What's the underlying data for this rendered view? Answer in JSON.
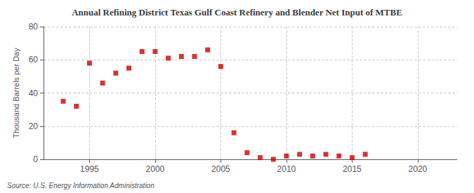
{
  "chart_data": {
    "type": "scatter",
    "title": "Annual Refining District Texas Gulf Coast Refinery and Blender Net Input of MTBE",
    "ylabel": "Thousand Barrels per Day",
    "annotation": "Source: U.S. Energy Information Administration",
    "color": "#cc0000",
    "marker": "square",
    "x": [
      1993,
      1994,
      1995,
      1996,
      1997,
      1998,
      1999,
      2000,
      2001,
      2002,
      2003,
      2004,
      2005,
      2006,
      2007,
      2008,
      2009,
      2010,
      2011,
      2012,
      2013,
      2014,
      2015,
      2016
    ],
    "values": [
      35,
      32,
      58,
      46,
      52,
      55,
      65,
      65,
      61,
      62,
      62,
      66,
      56,
      16,
      4,
      1,
      0,
      2,
      3,
      2,
      3,
      2,
      1,
      3
    ],
    "xlim": [
      1991.5,
      2023
    ],
    "xticks": [
      1995,
      2000,
      2005,
      2010,
      2015,
      2020
    ],
    "ylim": [
      0,
      80
    ],
    "yticks": [
      0,
      20,
      40,
      60,
      80
    ],
    "grid": true
  }
}
